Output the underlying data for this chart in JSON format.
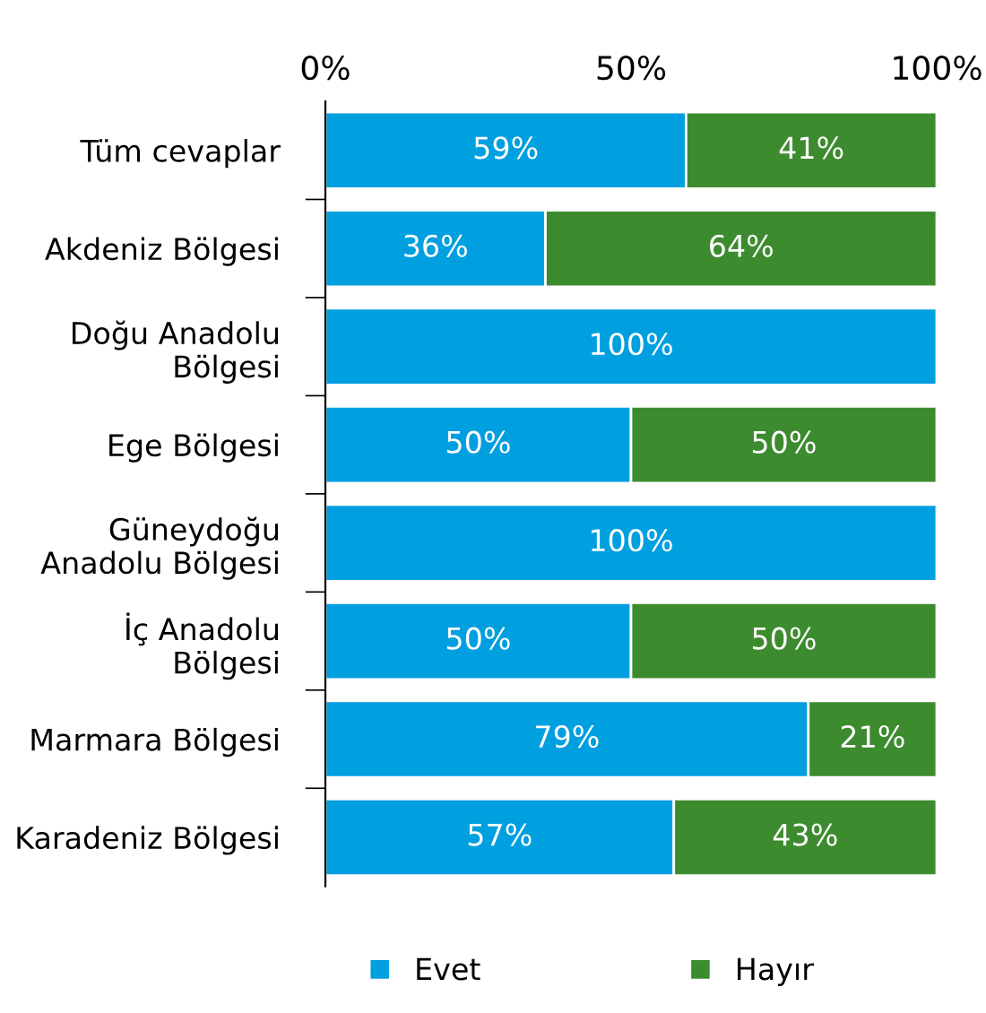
{
  "chart_data": {
    "type": "bar",
    "orientation": "horizontal",
    "stacked": true,
    "categories": [
      "Tüm cevaplar",
      "Akdeniz Bölgesi",
      "Doğu Anadolu\nBölgesi",
      "Ege Bölgesi",
      "Güneydoğu\nAnadolu Bölgesi",
      "İç Anadolu\nBölgesi",
      "Marmara Bölgesi",
      "Karadeniz Bölgesi"
    ],
    "series": [
      {
        "name": "Evet",
        "color": "#009fe0",
        "values": [
          59,
          36,
          100,
          50,
          100,
          50,
          79,
          57
        ],
        "value_labels": [
          "59%",
          "36%",
          "100%",
          "50%",
          "100%",
          "50%",
          "79%",
          "57%"
        ]
      },
      {
        "name": "Hayır",
        "color": "#3d8b2f",
        "values": [
          41,
          64,
          null,
          50,
          null,
          50,
          21,
          43
        ],
        "value_labels": [
          "41%",
          "64%",
          null,
          "50%",
          null,
          "50%",
          "21%",
          "43%"
        ]
      }
    ],
    "xlim": [
      0,
      100
    ],
    "xticks": [
      {
        "value": 0,
        "label": "0%"
      },
      {
        "value": 50,
        "label": "50%"
      },
      {
        "value": 100,
        "label": "100%"
      }
    ],
    "grid": false,
    "legend": "bottom"
  }
}
